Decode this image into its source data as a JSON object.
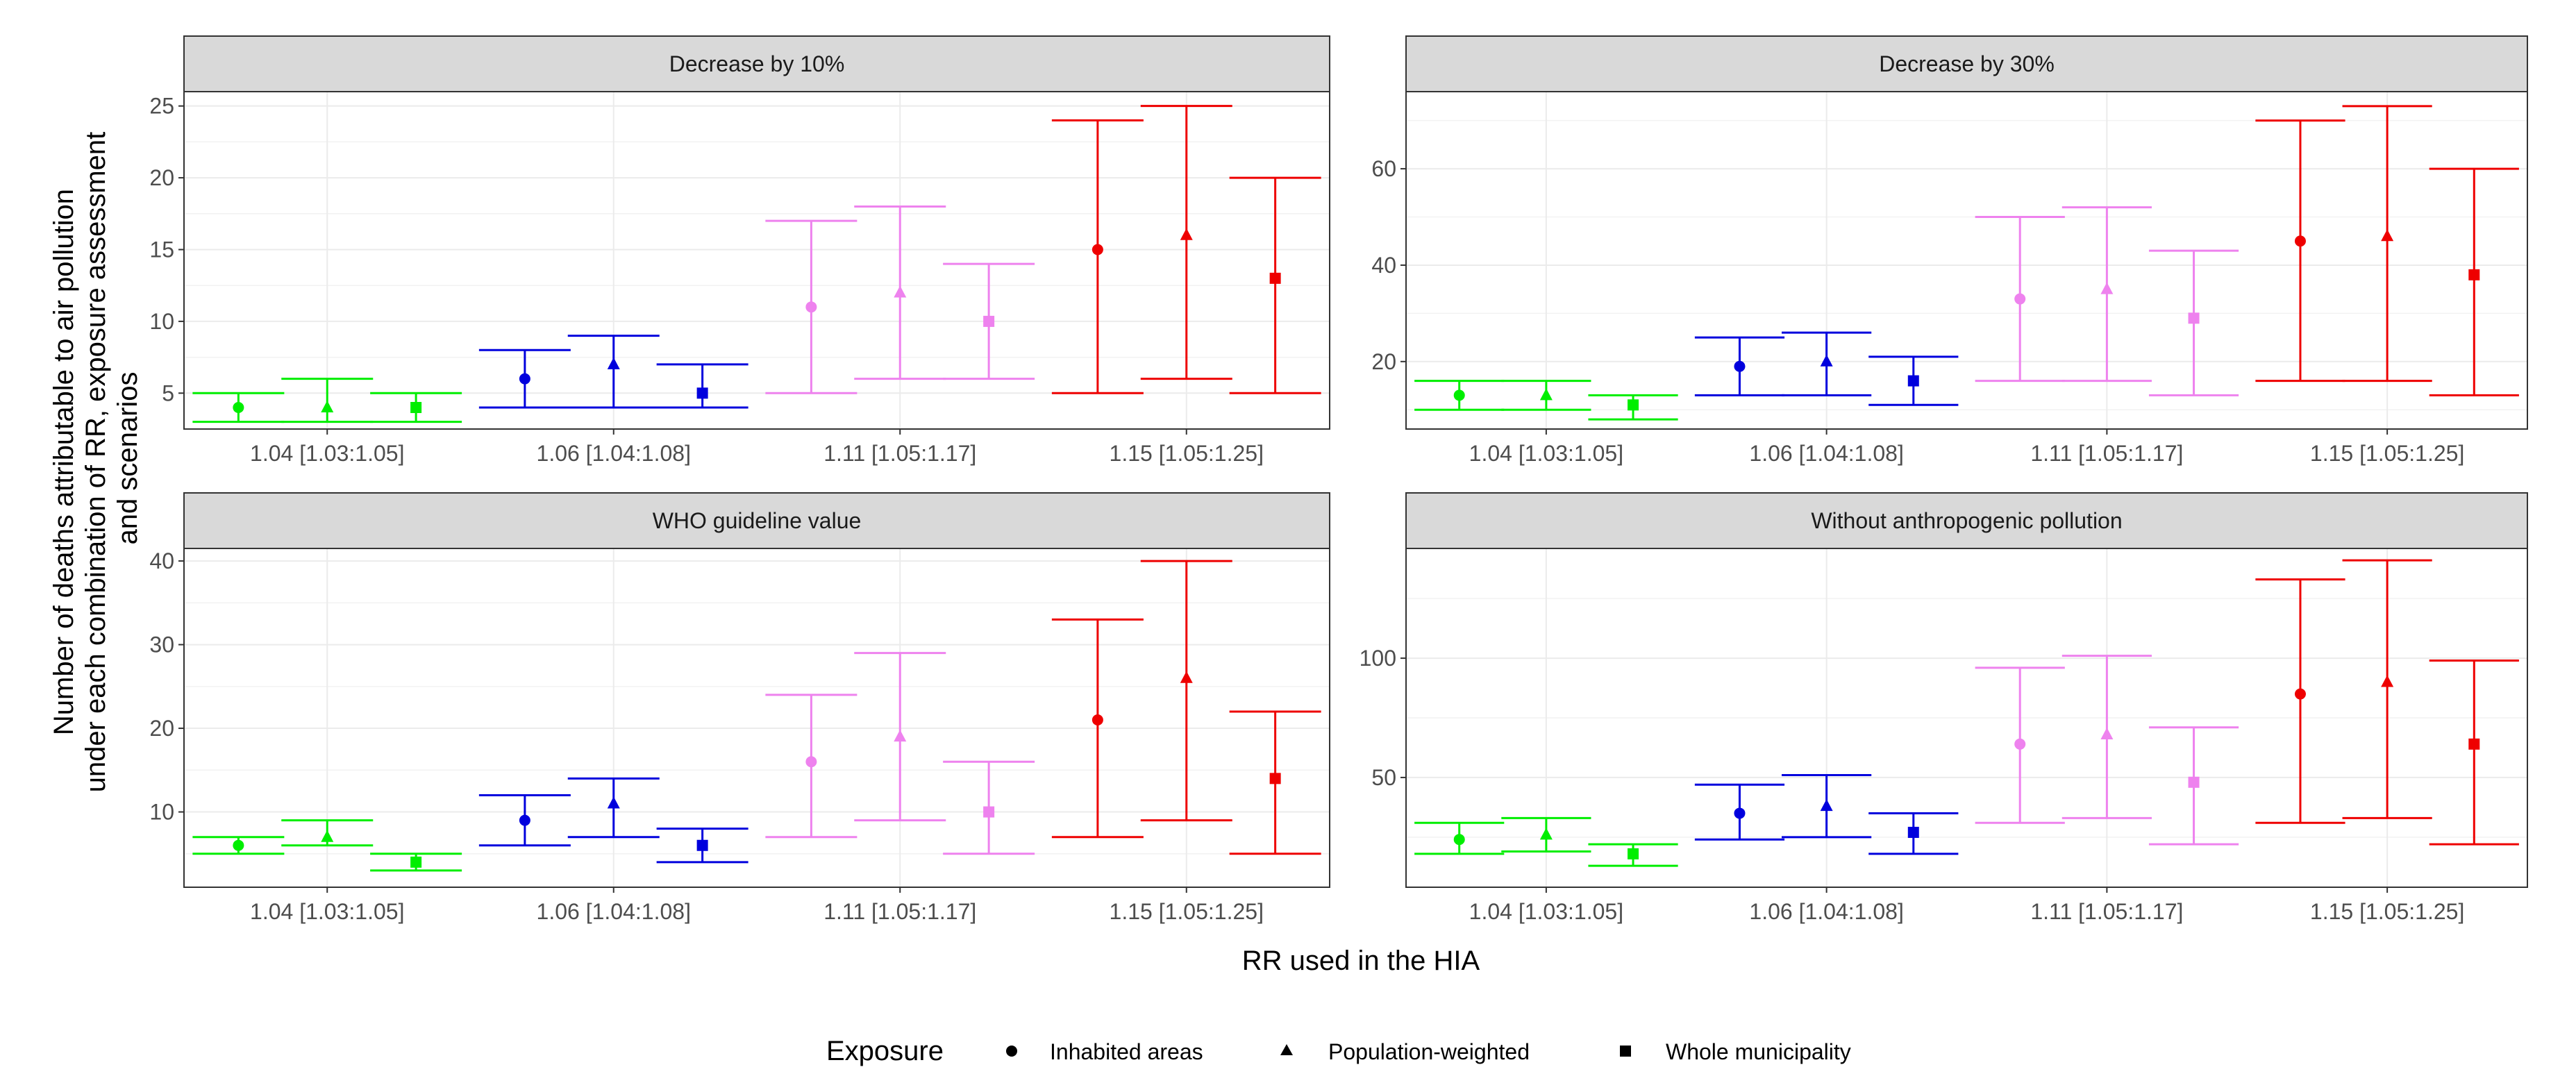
{
  "chart_data": {
    "type": "errorbar",
    "xlabel": "RR used in the HIA",
    "ylabel_lines": [
      "Number of deaths attributable to air pollution",
      "under each combination of RR, exposure assessment",
      "and scenarios"
    ],
    "categories": [
      "1.04 [1.03:1.05]",
      "1.06 [1.04:1.08]",
      "1.11 [1.05:1.17]",
      "1.15 [1.05:1.25]"
    ],
    "category_colors": [
      "#00ee00",
      "#0000dd",
      "#ee82ee",
      "#ee0000"
    ],
    "exposures": [
      "Inhabited areas",
      "Population-weighted",
      "Whole municipality"
    ],
    "exposure_shapes": [
      "circle",
      "triangle",
      "square"
    ],
    "legend": {
      "title": "Exposure",
      "position": "bottom",
      "items": [
        "Inhabited areas",
        "Population-weighted",
        "Whole municipality"
      ]
    },
    "panels": [
      {
        "title": "Decrease by 10%",
        "ylim": [
          2.5,
          26
        ],
        "yticks": [
          5,
          10,
          15,
          20,
          25
        ],
        "points": [
          [
            {
              "y": 4,
              "low": 3,
              "high": 5
            },
            {
              "y": 4,
              "low": 3,
              "high": 6
            },
            {
              "y": 4,
              "low": 3,
              "high": 5
            }
          ],
          [
            {
              "y": 6,
              "low": 4,
              "high": 8
            },
            {
              "y": 7,
              "low": 4,
              "high": 9
            },
            {
              "y": 5,
              "low": 4,
              "high": 7
            }
          ],
          [
            {
              "y": 11,
              "low": 5,
              "high": 17
            },
            {
              "y": 12,
              "low": 6,
              "high": 18
            },
            {
              "y": 10,
              "low": 6,
              "high": 14
            }
          ],
          [
            {
              "y": 15,
              "low": 5,
              "high": 24
            },
            {
              "y": 16,
              "low": 6,
              "high": 25
            },
            {
              "y": 13,
              "low": 5,
              "high": 20
            }
          ]
        ]
      },
      {
        "title": "Decrease by 30%",
        "ylim": [
          6,
          76
        ],
        "yticks": [
          20,
          40,
          60
        ],
        "points": [
          [
            {
              "y": 13,
              "low": 10,
              "high": 16
            },
            {
              "y": 13,
              "low": 10,
              "high": 16
            },
            {
              "y": 11,
              "low": 8,
              "high": 13
            }
          ],
          [
            {
              "y": 19,
              "low": 13,
              "high": 25
            },
            {
              "y": 20,
              "low": 13,
              "high": 26
            },
            {
              "y": 16,
              "low": 11,
              "high": 21
            }
          ],
          [
            {
              "y": 33,
              "low": 16,
              "high": 50
            },
            {
              "y": 35,
              "low": 16,
              "high": 52
            },
            {
              "y": 29,
              "low": 13,
              "high": 43
            }
          ],
          [
            {
              "y": 45,
              "low": 16,
              "high": 70
            },
            {
              "y": 46,
              "low": 16,
              "high": 73
            },
            {
              "y": 38,
              "low": 13,
              "high": 60
            }
          ]
        ]
      },
      {
        "title": "WHO guideline value",
        "ylim": [
          1,
          41.5
        ],
        "yticks": [
          10,
          20,
          30,
          40
        ],
        "points": [
          [
            {
              "y": 6,
              "low": 5,
              "high": 7
            },
            {
              "y": 7,
              "low": 6,
              "high": 9
            },
            {
              "y": 4,
              "low": 3,
              "high": 5
            }
          ],
          [
            {
              "y": 9,
              "low": 6,
              "high": 12
            },
            {
              "y": 11,
              "low": 7,
              "high": 14
            },
            {
              "y": 6,
              "low": 4,
              "high": 8
            }
          ],
          [
            {
              "y": 16,
              "low": 7,
              "high": 24
            },
            {
              "y": 19,
              "low": 9,
              "high": 29
            },
            {
              "y": 10,
              "low": 5,
              "high": 16
            }
          ],
          [
            {
              "y": 21,
              "low": 7,
              "high": 33
            },
            {
              "y": 26,
              "low": 9,
              "high": 40
            },
            {
              "y": 14,
              "low": 5,
              "high": 22
            }
          ]
        ]
      },
      {
        "title": "Without anthropogenic pollution",
        "ylim": [
          4,
          146
        ],
        "yticks": [
          50,
          100
        ],
        "points": [
          [
            {
              "y": 24,
              "low": 18,
              "high": 31
            },
            {
              "y": 26,
              "low": 19,
              "high": 33
            },
            {
              "y": 18,
              "low": 13,
              "high": 22
            }
          ],
          [
            {
              "y": 35,
              "low": 24,
              "high": 47
            },
            {
              "y": 38,
              "low": 25,
              "high": 51
            },
            {
              "y": 27,
              "low": 18,
              "high": 35
            }
          ],
          [
            {
              "y": 64,
              "low": 31,
              "high": 96
            },
            {
              "y": 68,
              "low": 33,
              "high": 101
            },
            {
              "y": 48,
              "low": 22,
              "high": 71
            }
          ],
          [
            {
              "y": 85,
              "low": 31,
              "high": 133
            },
            {
              "y": 90,
              "low": 33,
              "high": 141
            },
            {
              "y": 64,
              "low": 22,
              "high": 99
            }
          ]
        ]
      }
    ]
  }
}
